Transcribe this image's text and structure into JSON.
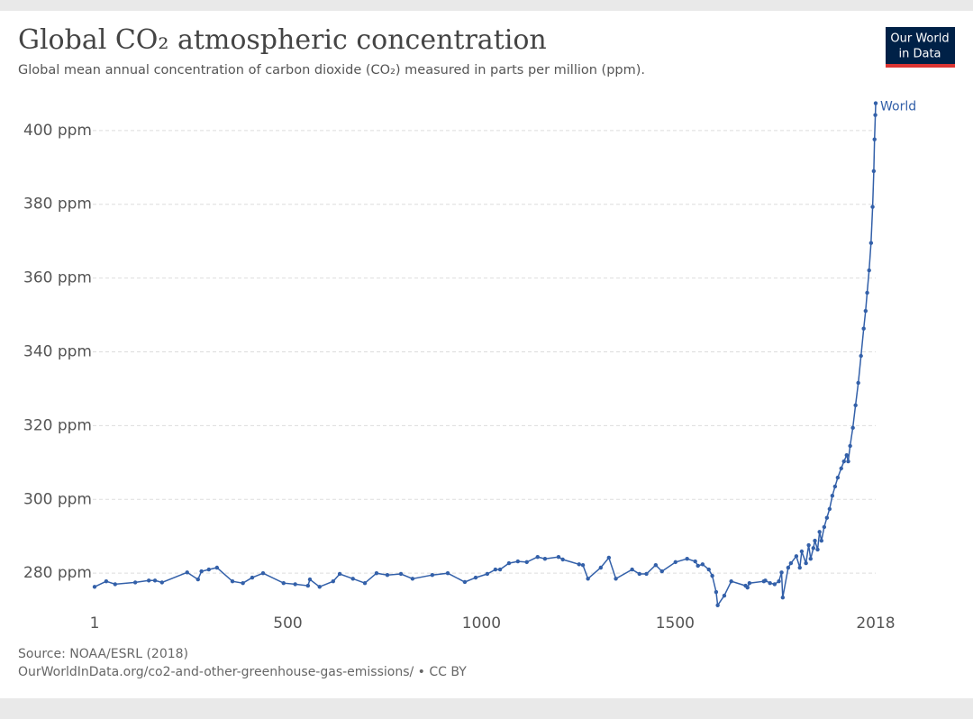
{
  "chart_data": {
    "type": "line",
    "title": "Global CO₂ atmospheric concentration",
    "subtitle": "Global mean annual concentration of carbon dioxide (CO₂) measured in parts per million (ppm).",
    "source": "Source: NOAA/ESRL (2018)",
    "url": "OurWorldInData.org/co2-and-other-greenhouse-gas-emissions/ • CC BY",
    "logo": [
      "Our World",
      "in Data"
    ],
    "x": [
      1,
      31,
      54,
      106,
      141,
      157,
      175,
      240,
      268,
      277,
      296,
      317,
      357,
      384,
      408,
      436,
      489,
      519,
      552,
      557,
      582,
      617,
      634,
      668,
      699,
      729,
      757,
      792,
      822,
      873,
      913,
      957,
      985,
      1015,
      1036,
      1048,
      1071,
      1094,
      1117,
      1145,
      1164,
      1199,
      1210,
      1252,
      1262,
      1275,
      1308,
      1329,
      1347,
      1389,
      1408,
      1426,
      1450,
      1466,
      1501,
      1531,
      1552,
      1559,
      1571,
      1587,
      1596,
      1606,
      1610,
      1627,
      1645,
      1682,
      1687,
      1692,
      1729,
      1733,
      1745,
      1757,
      1768,
      1775,
      1778,
      1792,
      1799,
      1813,
      1822,
      1827,
      1838,
      1845,
      1850,
      1857,
      1861,
      1868,
      1873,
      1878,
      1885,
      1892,
      1899,
      1906,
      1913,
      1920,
      1929,
      1936,
      1943,
      1947,
      1952,
      1959,
      1966,
      1973,
      1980,
      1987,
      1992,
      1996,
      2001,
      2006,
      2010,
      2013,
      2015,
      2017,
      2018
    ],
    "series": [
      {
        "name": "World",
        "color": "#3360a9",
        "values": [
          276.3,
          277.8,
          277,
          277.5,
          278,
          278,
          277.5,
          280.2,
          278.3,
          280.5,
          281,
          281.5,
          277.8,
          277.3,
          278.8,
          280,
          277.3,
          277,
          276.6,
          278.3,
          276.3,
          277.8,
          279.8,
          278.5,
          277.3,
          280,
          279.5,
          279.8,
          278.5,
          279.5,
          280,
          277.6,
          278.8,
          279.8,
          281,
          281,
          282.7,
          283.2,
          283,
          284.4,
          283.9,
          284.4,
          283.7,
          282.4,
          282.2,
          278.5,
          281.5,
          284.2,
          278.5,
          281,
          279.8,
          279.8,
          282.2,
          280.5,
          283,
          283.9,
          283.2,
          282,
          282.4,
          281,
          279.3,
          274.9,
          271.3,
          273.9,
          277.8,
          276.6,
          276.1,
          277.3,
          277.8,
          278,
          277.3,
          277,
          277.8,
          280.2,
          273.4,
          281.5,
          282.7,
          284.6,
          281.5,
          285.9,
          282.7,
          287.6,
          283.9,
          286.8,
          288.8,
          286.4,
          291.2,
          288.8,
          292.5,
          295,
          297.4,
          301,
          303.5,
          305.9,
          308.4,
          310.3,
          312,
          310.3,
          314.5,
          319.4,
          325.5,
          331.6,
          338.9,
          346.3,
          351.1,
          356,
          362.1,
          369.5,
          379.3,
          389,
          397.6,
          404.2,
          407.4
        ]
      }
    ],
    "xlim": [
      1,
      2018
    ],
    "xticks": [
      1,
      500,
      1000,
      1500,
      2018
    ],
    "ylim": [
      271,
      409
    ],
    "yticks": [
      {
        "value": 280,
        "label": "280 ppm"
      },
      {
        "value": 300,
        "label": "300 ppm"
      },
      {
        "value": 320,
        "label": "320 ppm"
      },
      {
        "value": 340,
        "label": "340 ppm"
      },
      {
        "value": 360,
        "label": "360 ppm"
      },
      {
        "value": 380,
        "label": "380 ppm"
      },
      {
        "value": 400,
        "label": "400 ppm"
      }
    ],
    "grid": true
  }
}
